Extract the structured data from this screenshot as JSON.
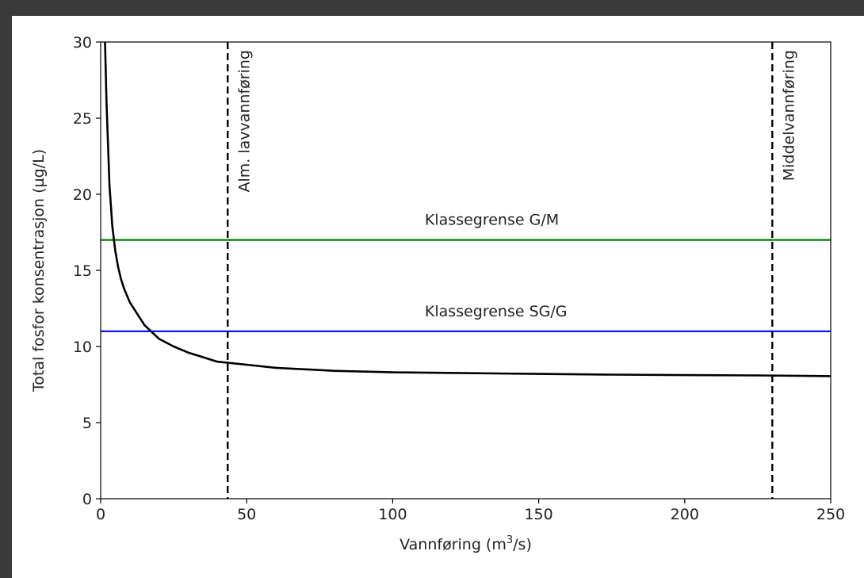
{
  "chart_data": {
    "type": "line",
    "xlabel_main": "Vannføring (m",
    "xlabel_sup": "3",
    "xlabel_end": "/s)",
    "ylabel": "Total fosfor konsentrasjon (µg/L)",
    "xlim": [
      0,
      250
    ],
    "ylim": [
      0,
      30
    ],
    "xticks": [
      0,
      50,
      100,
      150,
      200,
      250
    ],
    "yticks": [
      0,
      5,
      10,
      15,
      20,
      25,
      30
    ],
    "grid": false,
    "series": [
      {
        "color": "#000000",
        "style": "solid",
        "x": [
          1.5,
          2,
          3,
          4,
          5,
          6,
          7,
          8,
          10,
          12,
          15,
          20,
          25,
          30,
          40,
          50,
          60,
          80,
          100,
          125,
          150,
          175,
          200,
          225,
          250
        ],
        "y": [
          30.0,
          26.0,
          20.6,
          17.9,
          16.3,
          15.2,
          14.4,
          13.8,
          12.9,
          12.3,
          11.4,
          10.5,
          10.0,
          9.6,
          9.0,
          8.8,
          8.6,
          8.4,
          8.3,
          8.25,
          8.2,
          8.15,
          8.12,
          8.1,
          8.05
        ]
      }
    ],
    "hlines": [
      {
        "y": 17.0,
        "color": "#008000",
        "label": "Klassegrense G/M",
        "label_x": 111
      },
      {
        "y": 11.0,
        "color": "#0000ff",
        "label": "Klassegrense SG/G",
        "label_x": 111
      }
    ],
    "vlines": [
      {
        "x": 43.5,
        "color": "#000000",
        "style": "dashed",
        "label": "Alm. lavvannføring"
      },
      {
        "x": 230,
        "color": "#000000",
        "style": "dashed",
        "label": "Middelvannføring"
      }
    ]
  }
}
